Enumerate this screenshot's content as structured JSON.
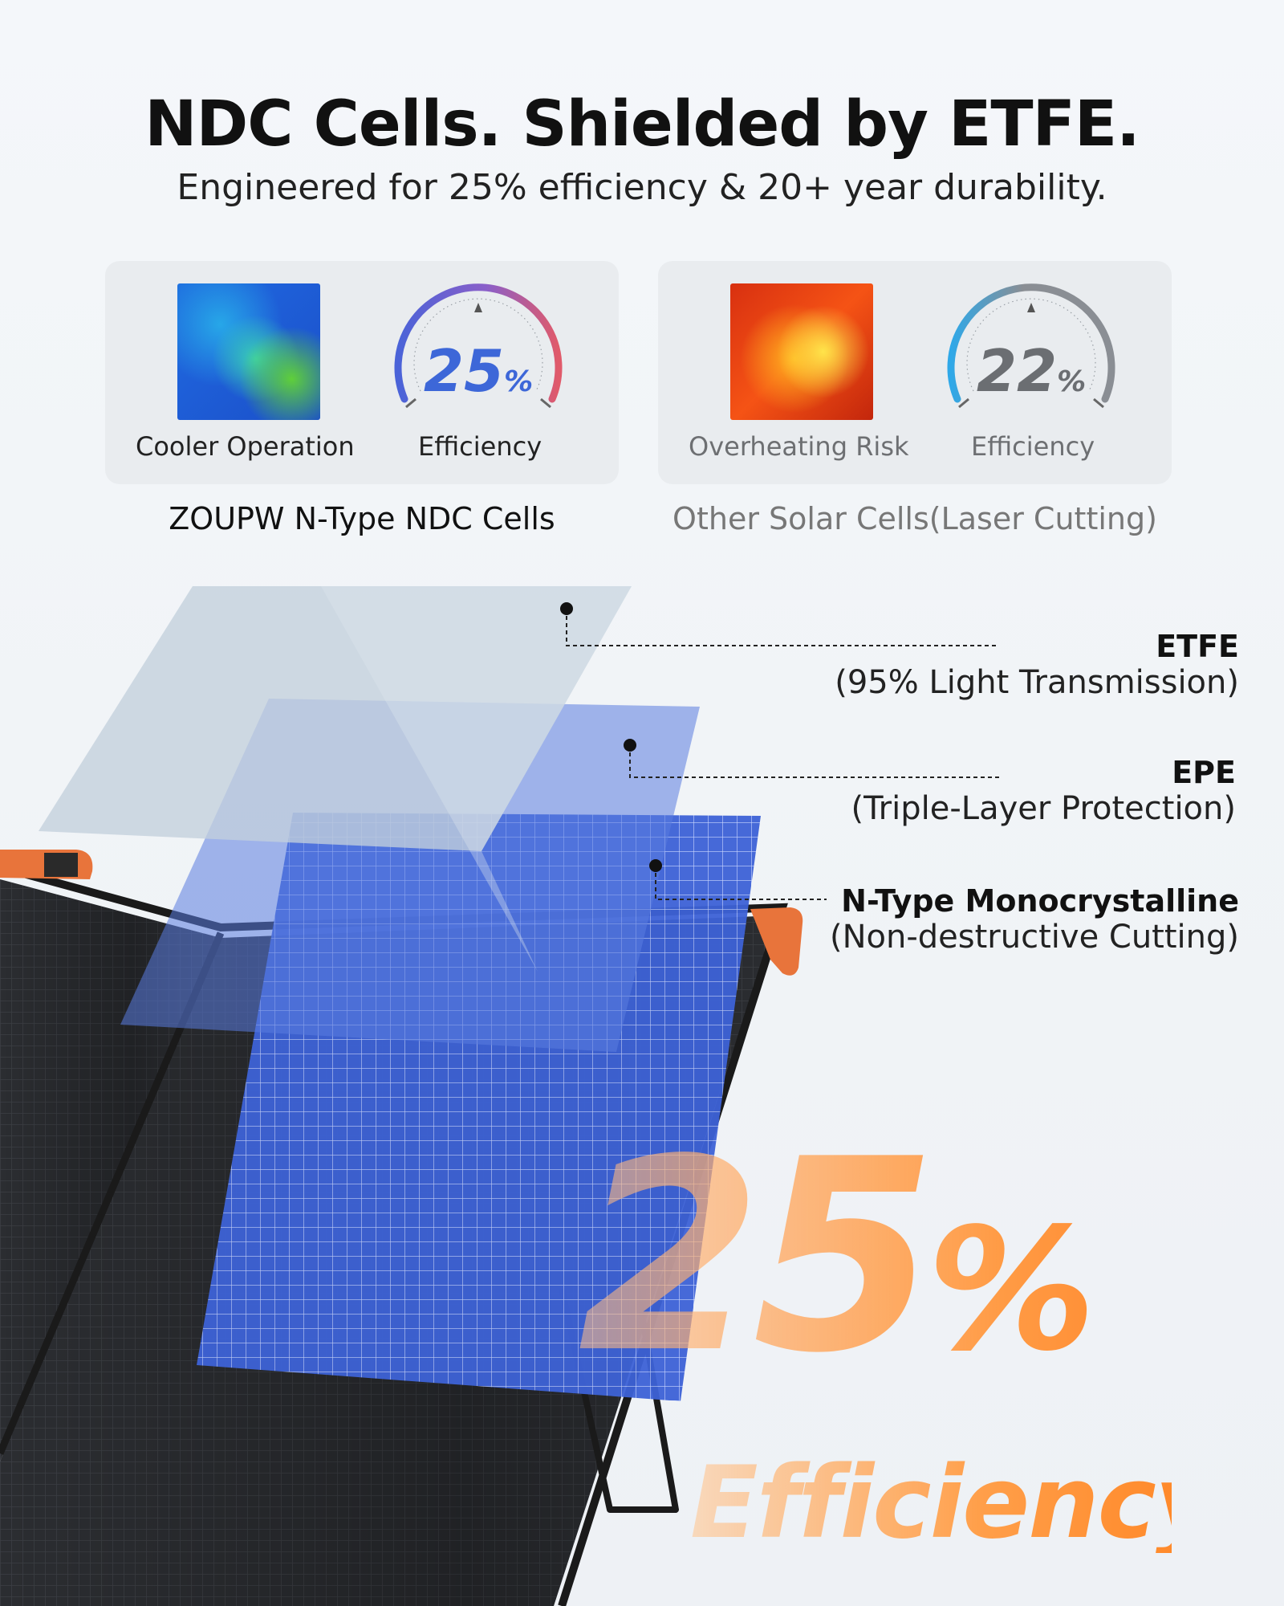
{
  "header": {
    "title": "NDC Cells. Shielded by ETFE.",
    "subtitle": "Engineered for 25% efficiency & 20+ year durability."
  },
  "comparison": {
    "left": {
      "thermal_label": "Cooler Operation",
      "efficiency_value": "25",
      "efficiency_unit": "%",
      "efficiency_label": "Efficiency",
      "caption": "ZOUPW N-Type NDC Cells"
    },
    "right": {
      "thermal_label": "Overheating Risk",
      "efficiency_value": "22",
      "efficiency_unit": "%",
      "efficiency_label": "Efficiency",
      "caption": "Other Solar Cells(Laser Cutting)"
    }
  },
  "layers": [
    {
      "title": "ETFE",
      "subtitle": "(95% Light Transmission)"
    },
    {
      "title": "EPE",
      "subtitle": "(Triple-Layer Protection)"
    },
    {
      "title": "N-Type Monocrystalline",
      "subtitle": "(Non-destructive Cutting)"
    }
  ],
  "hero": {
    "value": "25",
    "unit": "%",
    "label": "Efficiency"
  },
  "colors": {
    "accent_blue": "#3d67d8",
    "accent_orange": "#ff8a2b",
    "handle_orange": "#e8743b"
  }
}
